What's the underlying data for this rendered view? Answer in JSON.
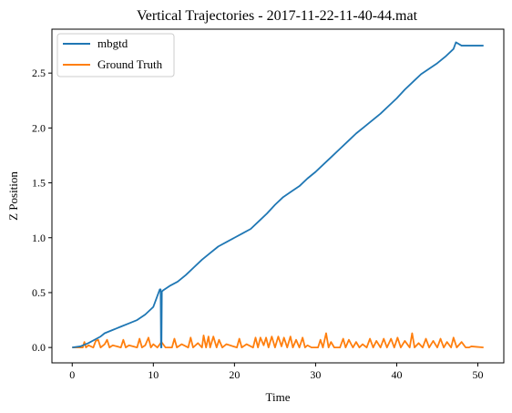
{
  "chart_data": {
    "type": "line",
    "title": "Vertical Trajectories - 2017-11-22-11-40-44.mat",
    "xlabel": "Time",
    "ylabel": "Z Position",
    "xlim": [
      -2.5,
      53.2
    ],
    "ylim": [
      -0.14,
      2.9
    ],
    "xticks": [
      0,
      10,
      20,
      30,
      40,
      50
    ],
    "yticks": [
      0.0,
      0.5,
      1.0,
      1.5,
      2.0,
      2.5
    ],
    "xtick_labels": [
      "0",
      "10",
      "20",
      "30",
      "40",
      "50"
    ],
    "ytick_labels": [
      "0.0",
      "0.5",
      "1.0",
      "1.5",
      "2.0",
      "2.5"
    ],
    "grid": false,
    "legend_position": "top-left",
    "series": [
      {
        "name": "mbgtd",
        "color": "#1f77b4",
        "x": [
          0,
          1,
          2,
          3,
          3.5,
          4,
          5,
          6,
          7,
          8,
          9,
          10,
          10.8,
          10.9,
          10.95,
          11.0,
          11.05,
          11.2,
          12,
          13,
          14,
          15,
          16,
          17,
          18,
          19,
          20,
          21,
          22,
          23,
          24,
          25,
          26,
          27,
          28,
          29,
          30,
          31,
          32,
          33,
          34,
          35,
          36,
          37,
          38,
          39,
          40,
          41,
          42,
          43,
          44,
          45,
          46,
          47,
          47.3,
          48,
          49,
          50,
          50.7
        ],
        "y": [
          0.0,
          0.01,
          0.04,
          0.08,
          0.1,
          0.13,
          0.16,
          0.19,
          0.22,
          0.25,
          0.3,
          0.37,
          0.53,
          0.53,
          0.0,
          0.0,
          0.51,
          0.52,
          0.56,
          0.6,
          0.66,
          0.73,
          0.8,
          0.86,
          0.92,
          0.96,
          1.0,
          1.04,
          1.08,
          1.15,
          1.22,
          1.3,
          1.37,
          1.42,
          1.47,
          1.54,
          1.6,
          1.67,
          1.74,
          1.81,
          1.88,
          1.95,
          2.01,
          2.07,
          2.13,
          2.2,
          2.27,
          2.35,
          2.42,
          2.49,
          2.54,
          2.59,
          2.65,
          2.72,
          2.78,
          2.75,
          2.75,
          2.75,
          2.75
        ]
      },
      {
        "name": "Ground Truth",
        "color": "#ff7f0e",
        "x": [
          0,
          1.3,
          1.5,
          1.7,
          2.0,
          2.6,
          2.9,
          3.2,
          3.5,
          4.0,
          4.3,
          4.6,
          5.0,
          6.0,
          6.3,
          6.6,
          7.0,
          8.0,
          8.3,
          8.6,
          9.0,
          9.4,
          9.7,
          10.0,
          10.5,
          11.0,
          11.5,
          12.3,
          12.6,
          12.9,
          13.5,
          14.3,
          14.6,
          14.9,
          15.5,
          16.0,
          16.2,
          16.5,
          16.8,
          17.0,
          17.4,
          17.8,
          18.1,
          18.5,
          19.0,
          20.3,
          20.6,
          20.9,
          21.5,
          22.3,
          22.6,
          22.9,
          23.2,
          23.6,
          23.9,
          24.2,
          24.6,
          25.0,
          25.4,
          25.8,
          26.1,
          26.5,
          26.9,
          27.2,
          27.6,
          28.0,
          28.4,
          28.7,
          29.0,
          29.5,
          30.3,
          30.6,
          30.9,
          31.3,
          31.6,
          31.9,
          32.3,
          33.0,
          33.4,
          33.7,
          34.1,
          34.6,
          35.0,
          35.4,
          35.8,
          36.3,
          36.7,
          37.1,
          37.5,
          38.0,
          38.4,
          38.8,
          39.3,
          39.7,
          40.1,
          40.5,
          41.0,
          41.6,
          41.9,
          42.2,
          42.7,
          43.2,
          43.6,
          44.0,
          44.5,
          45.0,
          45.4,
          45.8,
          46.2,
          46.7,
          47.0,
          47.4,
          48.0,
          48.5,
          48.9,
          49.2,
          50.7
        ],
        "y": [
          0.0,
          0.0,
          0.05,
          0.0,
          0.02,
          0.0,
          0.06,
          0.07,
          0.0,
          0.03,
          0.07,
          0.0,
          0.02,
          0.0,
          0.07,
          0.0,
          0.02,
          0.0,
          0.08,
          0.0,
          0.02,
          0.09,
          0.0,
          0.03,
          0.0,
          0.05,
          0.0,
          0.0,
          0.08,
          0.0,
          0.03,
          0.0,
          0.09,
          0.0,
          0.04,
          0.0,
          0.11,
          0.0,
          0.1,
          0.0,
          0.1,
          0.0,
          0.07,
          0.0,
          0.03,
          0.0,
          0.08,
          0.0,
          0.03,
          0.0,
          0.09,
          0.0,
          0.09,
          0.02,
          0.09,
          0.0,
          0.1,
          0.0,
          0.1,
          0.01,
          0.09,
          0.0,
          0.1,
          0.0,
          0.07,
          0.0,
          0.09,
          0.0,
          0.02,
          0.0,
          0.0,
          0.07,
          0.0,
          0.13,
          0.0,
          0.05,
          0.0,
          0.0,
          0.08,
          0.0,
          0.07,
          0.0,
          0.05,
          0.0,
          0.03,
          0.0,
          0.08,
          0.0,
          0.06,
          0.0,
          0.08,
          0.0,
          0.08,
          0.0,
          0.09,
          0.0,
          0.06,
          0.0,
          0.13,
          0.0,
          0.04,
          0.0,
          0.08,
          0.0,
          0.06,
          0.0,
          0.08,
          0.0,
          0.05,
          0.0,
          0.09,
          0.0,
          0.05,
          0.0,
          0.0,
          0.01,
          0.0
        ]
      }
    ]
  }
}
